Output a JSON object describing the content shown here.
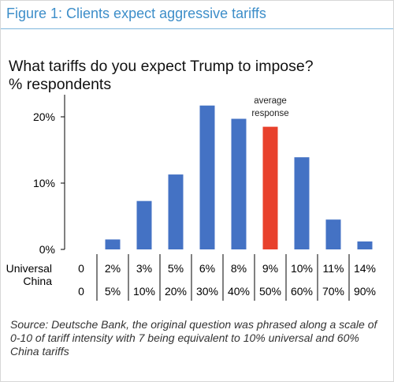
{
  "figure_title": "Figure 1: Clients expect aggressive tariffs",
  "chart_data": {
    "type": "bar",
    "title": "What tariffs do you expect Trump to impose?",
    "subtitle": "% respondents",
    "ylim": [
      0,
      24
    ],
    "yticks": [
      0,
      10,
      20
    ],
    "ytick_labels": [
      "0%",
      "10%",
      "20%"
    ],
    "categories": [
      "0",
      "2%",
      "3%",
      "5%",
      "6%",
      "8%",
      "9%",
      "10%",
      "11%",
      "14%"
    ],
    "china_categories": [
      "0",
      "5%",
      "10%",
      "20%",
      "30%",
      "40%",
      "50%",
      "60%",
      "70%",
      "90%"
    ],
    "values": [
      0,
      1.5,
      7.3,
      11.3,
      21.7,
      19.7,
      18.5,
      13.9,
      4.5,
      1.2
    ],
    "row_labels": [
      "Universal",
      "China"
    ],
    "highlight_index": 6,
    "annotation": [
      "average",
      "response"
    ],
    "colors": {
      "bar": "#4472c4",
      "highlight": "#e8412c"
    }
  },
  "source": "Source: Deutsche Bank, the original question was phrased along a scale of 0-10 of tariff intensity with 7 being equivalent to 10% universal and 60% China tariffs"
}
